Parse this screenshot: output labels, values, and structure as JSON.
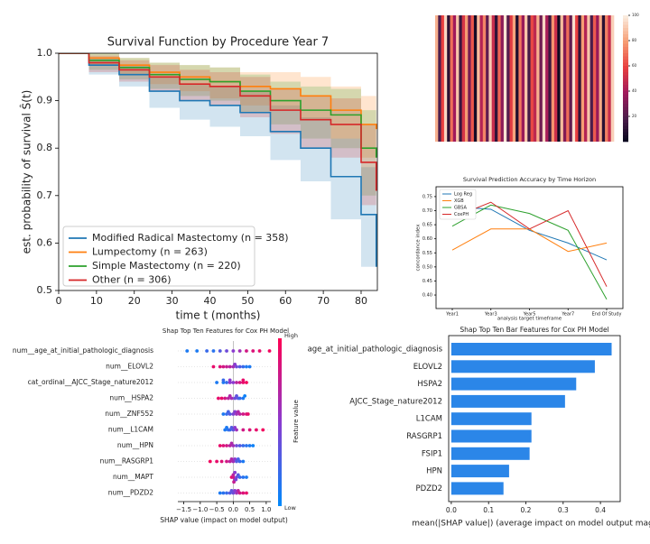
{
  "chart_data": [
    {
      "type": "step",
      "title": "Survival Function by Procedure Year 7",
      "x_label": "time t (months)",
      "y_label": "est. probability of survival Ŝ(t)",
      "x": [
        0,
        8,
        16,
        24,
        32,
        40,
        48,
        56,
        64,
        72,
        80,
        84
      ],
      "xlim": [
        0,
        84.3
      ],
      "ylim": [
        0.5,
        1.0
      ],
      "xticks": [
        0,
        10,
        20,
        30,
        40,
        50,
        60,
        70,
        80
      ],
      "yticks": [
        0.5,
        0.6,
        0.7,
        0.8,
        0.9,
        {
          "value": 1.0,
          "label": "1.0"
        }
      ],
      "legend": "lower left",
      "series": [
        {
          "name": "Modified Radical Mastectomy (n = 358)",
          "color": "#1f77b4",
          "values": [
            1,
            0.975,
            0.955,
            0.92,
            0.9,
            0.89,
            0.875,
            0.835,
            0.8,
            0.74,
            0.66,
            0.55
          ],
          "lower": [
            1,
            0.955,
            0.93,
            0.885,
            0.86,
            0.845,
            0.825,
            0.775,
            0.73,
            0.65,
            0.55,
            0.45
          ],
          "upper": [
            1,
            0.99,
            0.975,
            0.95,
            0.935,
            0.93,
            0.92,
            0.89,
            0.865,
            0.82,
            0.76,
            0.66
          ]
        },
        {
          "name": "Lumpectomy (n = 263)",
          "color": "#ff7f0e",
          "values": [
            1,
            0.99,
            0.975,
            0.96,
            0.95,
            0.94,
            0.93,
            0.925,
            0.91,
            0.88,
            0.85,
            0.84
          ],
          "lower": [
            1,
            0.975,
            0.955,
            0.935,
            0.92,
            0.905,
            0.89,
            0.88,
            0.86,
            0.82,
            0.78,
            0.76
          ],
          "upper": [
            1,
            1,
            0.99,
            0.98,
            0.975,
            0.97,
            0.96,
            0.96,
            0.95,
            0.93,
            0.91,
            0.91
          ]
        },
        {
          "name": "Simple Mastectomy (n = 220)",
          "color": "#2ca02c",
          "values": [
            1,
            0.985,
            0.97,
            0.955,
            0.945,
            0.94,
            0.92,
            0.9,
            0.88,
            0.87,
            0.8,
            0.78
          ],
          "lower": [
            1,
            0.965,
            0.945,
            0.925,
            0.91,
            0.9,
            0.875,
            0.85,
            0.82,
            0.8,
            0.7,
            0.66
          ],
          "upper": [
            1,
            1,
            0.99,
            0.98,
            0.975,
            0.97,
            0.955,
            0.94,
            0.93,
            0.925,
            0.88,
            0.87
          ]
        },
        {
          "name": "Other (n = 306)",
          "color": "#d62728",
          "values": [
            1,
            0.98,
            0.965,
            0.95,
            0.935,
            0.93,
            0.91,
            0.88,
            0.86,
            0.85,
            0.77,
            0.71
          ],
          "lower": [
            1,
            0.96,
            0.94,
            0.92,
            0.9,
            0.89,
            0.865,
            0.83,
            0.8,
            0.78,
            0.68,
            0.6
          ],
          "upper": [
            1,
            0.995,
            0.985,
            0.975,
            0.965,
            0.96,
            0.95,
            0.925,
            0.91,
            0.905,
            0.85,
            0.8
          ]
        }
      ]
    },
    {
      "type": "heatmap",
      "values": [
        85,
        20,
        60,
        95,
        10,
        70,
        40,
        90,
        15,
        55,
        80,
        30,
        65,
        5,
        88,
        45,
        75,
        25,
        92,
        50,
        12,
        68,
        35,
        98,
        22,
        58,
        82,
        8,
        72,
        38,
        90,
        18,
        62,
        48,
        85,
        28,
        95,
        42,
        15,
        78,
        52,
        3,
        88,
        33,
        70,
        25,
        97,
        60,
        12,
        80,
        45,
        90,
        20,
        66,
        38,
        84,
        10,
        74,
        50,
        93
      ],
      "vlim": [
        0,
        100
      ],
      "colorbar_ticks": [
        20,
        40,
        60,
        80,
        100
      ]
    },
    {
      "type": "line",
      "title": "Survival Prediction Accuracy by Time Horizon",
      "x_label": "analysis target timeframe",
      "y_label": "concordance index",
      "categories": [
        "Year1",
        "Year3",
        "Year5",
        "Year7",
        "End Of Study"
      ],
      "ylim": [
        0.352,
        0.785
      ],
      "yticks": [
        {
          "value": 0.4,
          "label": "0.40"
        },
        0.45,
        {
          "value": 0.5,
          "label": "0.50"
        },
        0.55,
        {
          "value": 0.6,
          "label": "0.60"
        },
        0.65,
        {
          "value": 0.7,
          "label": "0.70"
        },
        0.75
      ],
      "legend": "upper left",
      "series": [
        {
          "name": "Log Reg",
          "color": "#1f77b4",
          "values": [
            0.715,
            0.705,
            0.63,
            0.585,
            0.525
          ]
        },
        {
          "name": "XGB",
          "color": "#ff7f0e",
          "values": [
            0.56,
            0.635,
            0.635,
            0.555,
            0.585
          ]
        },
        {
          "name": "GBSA",
          "color": "#2ca02c",
          "values": [
            0.645,
            0.72,
            0.69,
            0.63,
            0.385
          ]
        },
        {
          "name": "CoxPH",
          "color": "#d62728",
          "values": [
            0.675,
            0.73,
            0.635,
            0.7,
            0.43
          ]
        }
      ]
    },
    {
      "type": "beeswarm",
      "title": "Shap Top Ten Features for Cox PH Model",
      "x_label": "SHAP value (impact on model output)",
      "colorbar_label": "Feature value",
      "colorbar_high": "High",
      "colorbar_low": "Low",
      "xlim": [
        -1.68,
        1.14
      ],
      "xticks": [
        {
          "value": -1.5,
          "label": "−1.5"
        },
        {
          "value": -1.0,
          "label": "−1.0"
        },
        {
          "value": -0.5,
          "label": "−0.5"
        },
        {
          "value": 0.0,
          "label": "0.0"
        },
        {
          "value": 0.5,
          "label": "0.5"
        },
        {
          "value": 1.0,
          "label": "1.0"
        }
      ],
      "features": [
        {
          "name": "num__age_at_initial_pathologic_diagnosis",
          "shap": [
            -1.4,
            -1.1,
            -0.8,
            -0.6,
            -0.4,
            -0.2,
            0.0,
            0.2,
            0.4,
            0.6,
            0.8,
            1.1
          ],
          "feature_values": [
            0.1,
            0.1,
            0.2,
            0.15,
            0.3,
            0.4,
            0.5,
            0.6,
            0.8,
            0.85,
            0.9,
            0.95
          ]
        },
        {
          "name": "num__ELOVL2",
          "shap": [
            -0.6,
            -0.4,
            -0.3,
            -0.1,
            0.0,
            0.1,
            0.2,
            0.3,
            0.4,
            0.5,
            -0.2,
            0.05
          ],
          "feature_values": [
            0.9,
            0.85,
            0.8,
            0.7,
            0.6,
            0.4,
            0.3,
            0.2,
            0.1,
            0.1,
            0.75,
            0.5
          ]
        },
        {
          "name": "cat_ordinal__AJCC_Stage_nature2012",
          "shap": [
            -0.5,
            -0.3,
            -0.3,
            -0.2,
            -0.1,
            -0.1,
            0.0,
            0.1,
            0.2,
            0.3,
            0.3,
            0.4
          ],
          "feature_values": [
            0.1,
            0.1,
            0.2,
            0.2,
            0.5,
            0.5,
            0.5,
            0.7,
            0.8,
            0.9,
            0.9,
            0.95
          ]
        },
        {
          "name": "num__HSPA2",
          "shap": [
            -0.45,
            -0.35,
            -0.25,
            -0.15,
            -0.05,
            0.05,
            0.15,
            0.2,
            0.3,
            0.35,
            -0.1,
            0.1
          ],
          "feature_values": [
            0.9,
            0.9,
            0.8,
            0.7,
            0.6,
            0.4,
            0.3,
            0.2,
            0.1,
            0.05,
            0.65,
            0.35
          ]
        },
        {
          "name": "num__ZNF552",
          "shap": [
            -0.3,
            -0.2,
            -0.1,
            0.0,
            0.05,
            0.1,
            0.2,
            0.3,
            0.4,
            0.45,
            -0.15,
            0.15
          ],
          "feature_values": [
            0.1,
            0.2,
            0.3,
            0.45,
            0.5,
            0.6,
            0.7,
            0.8,
            0.85,
            0.9,
            0.25,
            0.65
          ]
        },
        {
          "name": "num__L1CAM",
          "shap": [
            -0.25,
            -0.15,
            -0.1,
            -0.05,
            0.0,
            0.05,
            0.1,
            0.3,
            0.5,
            0.7,
            0.9,
            -0.2
          ],
          "feature_values": [
            0.1,
            0.15,
            0.2,
            0.3,
            0.35,
            0.5,
            0.6,
            0.8,
            0.85,
            0.9,
            0.95,
            0.1
          ]
        },
        {
          "name": "num__HPN",
          "shap": [
            -0.4,
            -0.3,
            -0.2,
            -0.1,
            0.0,
            0.1,
            0.2,
            0.3,
            0.4,
            0.5,
            0.6,
            -0.05
          ],
          "feature_values": [
            0.9,
            0.85,
            0.8,
            0.7,
            0.6,
            0.4,
            0.3,
            0.2,
            0.15,
            0.1,
            0.05,
            0.65
          ]
        },
        {
          "name": "num__RASGRP1",
          "shap": [
            -0.7,
            -0.5,
            -0.35,
            -0.2,
            -0.1,
            0.0,
            0.05,
            0.1,
            0.2,
            0.3,
            -0.05,
            0.15
          ],
          "feature_values": [
            0.95,
            0.9,
            0.85,
            0.8,
            0.7,
            0.6,
            0.5,
            0.3,
            0.2,
            0.1,
            0.65,
            0.25
          ]
        },
        {
          "name": "num__MAPT",
          "shap": [
            -0.05,
            0.0,
            0.0,
            0.05,
            0.05,
            0.1,
            0.15,
            0.2,
            0.3,
            0.4,
            0.02,
            0.08
          ],
          "feature_values": [
            0.9,
            0.8,
            0.7,
            0.6,
            0.5,
            0.4,
            0.3,
            0.2,
            0.15,
            0.1,
            0.75,
            0.45
          ]
        },
        {
          "name": "num__PDZD2",
          "shap": [
            -0.4,
            -0.3,
            -0.2,
            -0.1,
            0.0,
            0.1,
            0.15,
            0.2,
            0.3,
            0.4,
            -0.05,
            0.05
          ],
          "feature_values": [
            0.1,
            0.15,
            0.2,
            0.3,
            0.4,
            0.6,
            0.7,
            0.8,
            0.85,
            0.9,
            0.35,
            0.5
          ]
        }
      ]
    },
    {
      "type": "barh",
      "title": "Shap Top Ten Bar Features for Cox PH Model",
      "x_label": "mean(|SHAP value|) (average impact on model output mag",
      "categories": [
        "age_at_initial_pathologic_diagnosis",
        "ELOVL2",
        "HSPA2",
        "AJCC_Stage_nature2012",
        "L1CAM",
        "RASGRP1",
        "FSIP1",
        "HPN",
        "PDZD2"
      ],
      "values": [
        0.43,
        0.385,
        0.335,
        0.305,
        0.215,
        0.215,
        0.21,
        0.155,
        0.14
      ],
      "color": "#2b86e8",
      "xlim": [
        -0.007,
        0.453
      ],
      "xticks": [
        {
          "value": 0.0,
          "label": "0.0"
        },
        0.1,
        0.2,
        0.3,
        0.4
      ]
    }
  ]
}
